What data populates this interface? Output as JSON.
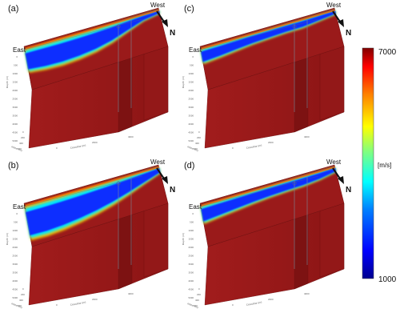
{
  "chart_data": [
    {
      "type": "heatmap",
      "panel_label": "(a)",
      "orientation": {
        "left": "East",
        "right": "West",
        "north": "N"
      },
      "axes": {
        "inline_label": "Inline (m)",
        "crossline_label": "Crossline (m)",
        "depth_label": "Depth (m)",
        "inline_ticks": [
          "0",
          "200",
          "400",
          "600"
        ],
        "crossline_ticks": [
          "0",
          "2000",
          "4000"
        ],
        "depth_ticks": [
          "0",
          "500",
          "1000",
          "1500",
          "2000",
          "2500",
          "3000",
          "3500",
          "4000",
          "4500",
          "5000"
        ]
      },
      "low_velocity_zone": {
        "depth_extent": "shallow-wide",
        "profile": [
          0.55,
          0.6,
          0.62,
          0.6,
          0.55,
          0.45,
          0.3,
          0.15,
          0.08
        ]
      }
    },
    {
      "type": "heatmap",
      "panel_label": "(b)",
      "orientation": {
        "left": "East",
        "right": "West",
        "north": "N"
      },
      "axes": {
        "inline_label": "Inline (m)",
        "crossline_label": "Crossline (m)",
        "depth_label": "Depth (m)",
        "inline_ticks": [
          "0",
          "200",
          "400",
          "600"
        ],
        "crossline_ticks": [
          "0",
          "2000",
          "4000"
        ],
        "depth_ticks": [
          "0",
          "500",
          "1000",
          "1500",
          "2000",
          "2500",
          "3000",
          "3500",
          "4000",
          "4500",
          "5000"
        ]
      },
      "low_velocity_zone": {
        "depth_extent": "deep",
        "profile": [
          0.8,
          0.82,
          0.8,
          0.75,
          0.68,
          0.58,
          0.45,
          0.3,
          0.15
        ]
      }
    },
    {
      "type": "heatmap",
      "panel_label": "(c)",
      "orientation": {
        "left": "East",
        "right": "West",
        "north": "N"
      },
      "axes": {
        "inline_label": "Inline (m)",
        "crossline_label": "Crossline (m)",
        "depth_label": "Depth (m)",
        "inline_ticks": [
          "0",
          "200",
          "400",
          "600"
        ],
        "crossline_ticks": [
          "0",
          "2000",
          "4000"
        ],
        "depth_ticks": [
          "0",
          "500",
          "1000",
          "1500",
          "2000",
          "2500",
          "3000",
          "3500",
          "4000",
          "4500",
          "5000"
        ]
      },
      "low_velocity_zone": {
        "depth_extent": "thin-layer",
        "profile": [
          0.35,
          0.32,
          0.28,
          0.24,
          0.22,
          0.2,
          0.2,
          0.15,
          0.1
        ]
      }
    },
    {
      "type": "heatmap",
      "panel_label": "(d)",
      "orientation": {
        "left": "East",
        "right": "West",
        "north": "N"
      },
      "axes": {
        "inline_label": "Inline (m)",
        "crossline_label": "Crossline (m)",
        "depth_label": "Depth (m)",
        "inline_ticks": [
          "0",
          "200",
          "400",
          "600"
        ],
        "crossline_ticks": [
          "0",
          "2000",
          "4000"
        ],
        "depth_ticks": [
          "0",
          "500",
          "1000",
          "1500",
          "2000",
          "2500",
          "3000",
          "3500",
          "4000",
          "4500",
          "5000"
        ]
      },
      "low_velocity_zone": {
        "depth_extent": "thin-layer-deeper",
        "profile": [
          0.42,
          0.38,
          0.34,
          0.3,
          0.27,
          0.25,
          0.24,
          0.2,
          0.12
        ]
      }
    }
  ],
  "colorbar": {
    "min": 1000,
    "max": 7000,
    "min_label": "1000",
    "max_label": "7000",
    "unit": "[m/s]",
    "colormap": "jet",
    "stops": [
      "#00008f",
      "#0000ff",
      "#0080ff",
      "#00ffff",
      "#80ff80",
      "#ffff00",
      "#ff8000",
      "#ff0000",
      "#800000"
    ]
  },
  "colors": {
    "background_velocity": "#9a1a1a",
    "slice_edge": "#6e1010"
  }
}
